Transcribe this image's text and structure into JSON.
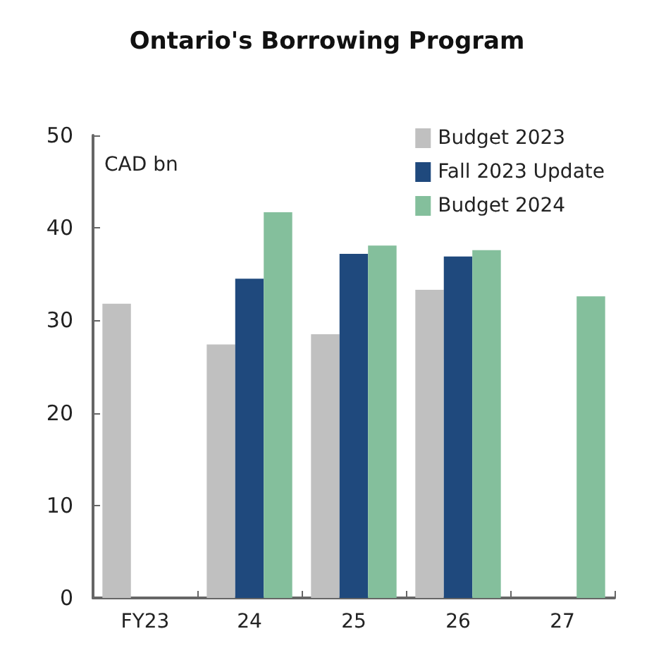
{
  "chart_data": {
    "type": "bar",
    "title": "Ontario's Borrowing Program",
    "ylabel": "CAD bn",
    "categories": [
      "FY23",
      "24",
      "25",
      "26",
      "27"
    ],
    "series": [
      {
        "name": "Budget 2023",
        "color": "#c0c0c0",
        "values": [
          31.8,
          27.4,
          28.5,
          33.3,
          null
        ]
      },
      {
        "name": "Fall 2023 Update",
        "color": "#1f497d",
        "values": [
          null,
          34.5,
          37.2,
          36.9,
          null
        ]
      },
      {
        "name": "Budget 2024",
        "color": "#84bf9c",
        "values": [
          null,
          41.7,
          38.1,
          37.6,
          32.6
        ]
      }
    ],
    "ylim": [
      0,
      50
    ],
    "yticks": [
      0,
      10,
      20,
      30,
      40,
      50
    ],
    "grid": false,
    "legend": "top right"
  }
}
